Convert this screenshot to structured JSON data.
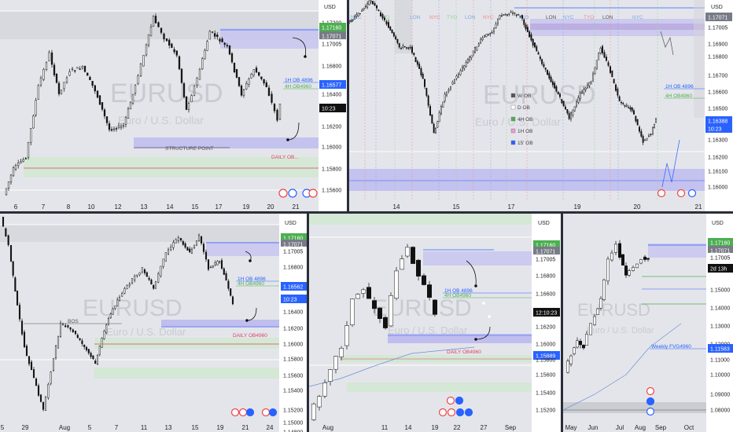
{
  "currency": "USD",
  "watermark": {
    "symbol": "EURUSD",
    "subtitle": "Euro / U.S. Dollar"
  },
  "panel_tl": {
    "timeframe": "1h",
    "price_labels": [
      "1.17200",
      "1.17160",
      "1.17071",
      "1.17005",
      "1.16800",
      "1.16577",
      "1.16400",
      "10:23",
      "1.16200",
      "1.16000",
      "1.15800",
      "1.15600"
    ],
    "date_labels": [
      "6",
      "7",
      "8",
      "10",
      "12",
      "13",
      "14",
      "15",
      "17",
      "19",
      "20",
      "21"
    ],
    "annotations": [
      "STRUCTURE POINT",
      "1H OB 4896",
      "4H OB4960",
      "DAILY OB..."
    ]
  },
  "panel_tr": {
    "timeframe": "15",
    "sessions": [
      "NYC",
      "TYO",
      "LON",
      "NYC",
      "TYO",
      "LON",
      "NYC",
      "TYO",
      "LON",
      "NYC",
      "TYO",
      "LON",
      "NYC"
    ],
    "price_labels": [
      "1.17071",
      "1.17005",
      "1.16900",
      "1.16800",
      "1.16700",
      "1.16600",
      "1.16500",
      "1.16388",
      "10:23",
      "1.16300",
      "1.16200",
      "1.16100",
      "1.16000"
    ],
    "date_labels": [
      "14",
      "15",
      "17",
      "19",
      "20",
      "21"
    ],
    "legend": [
      "W OB",
      "D OB",
      "4H OB",
      "1H OB",
      "15' OB"
    ],
    "annotations": [
      "1H OB 4896",
      "4H OB4960"
    ]
  },
  "panel_bl": {
    "timeframe": "4h",
    "price_labels": [
      "1.17160",
      "1.17071",
      "1.17005",
      "1.16800",
      "1.16562",
      "10:23",
      "1.16400",
      "1.16200",
      "1.16000",
      "1.15800",
      "1.15600",
      "1.15400",
      "1.15200",
      "1.15000",
      "1.14800"
    ],
    "date_labels": [
      "5",
      "29",
      "Aug",
      "5",
      "7",
      "11",
      "13",
      "15",
      "19",
      "21",
      "24"
    ],
    "annotations": [
      "BOS",
      "1H OB 4896",
      "4H OB4960",
      "DAILY OB4960"
    ]
  },
  "panel_bm": {
    "timeframe": "1D",
    "price_labels": [
      "1.17160",
      "1.17071",
      "1.17005",
      "1.16800",
      "1.16600",
      "1.16400",
      "12:10:23",
      "1.16200",
      "1.16000",
      "1.15889",
      "1.15800",
      "1.15600",
      "1.15400",
      "1.15200"
    ],
    "date_labels": [
      "Aug",
      "11",
      "14",
      "19",
      "22",
      "27",
      "Sep"
    ],
    "annotations": [
      "1H OB 4896",
      "4H OB4960",
      "DAILY OB4960"
    ]
  },
  "panel_br": {
    "timeframe": "1W",
    "price_labels": [
      "1.17160",
      "1.17071",
      "1.17005",
      "2d 13h",
      "1.15000",
      "1.14000",
      "1.13000",
      "1.12000",
      "1.11583",
      "1.11000",
      "1.10000",
      "1.09000",
      "1.08000"
    ],
    "date_labels": [
      "May",
      "Jun",
      "Jul",
      "Aug",
      "Sep",
      "Oct"
    ],
    "annotations": [
      "Weekly FVG4960"
    ]
  },
  "colors": {
    "bull": "#ffffff",
    "bear": "#111111",
    "green": "#4caf50",
    "blue": "#2962ff",
    "grey": "#787b86",
    "zone_purple": "#b7b3f0",
    "zone_green": "#cfe8cf",
    "zone_grey": "#c5c7cc"
  }
}
